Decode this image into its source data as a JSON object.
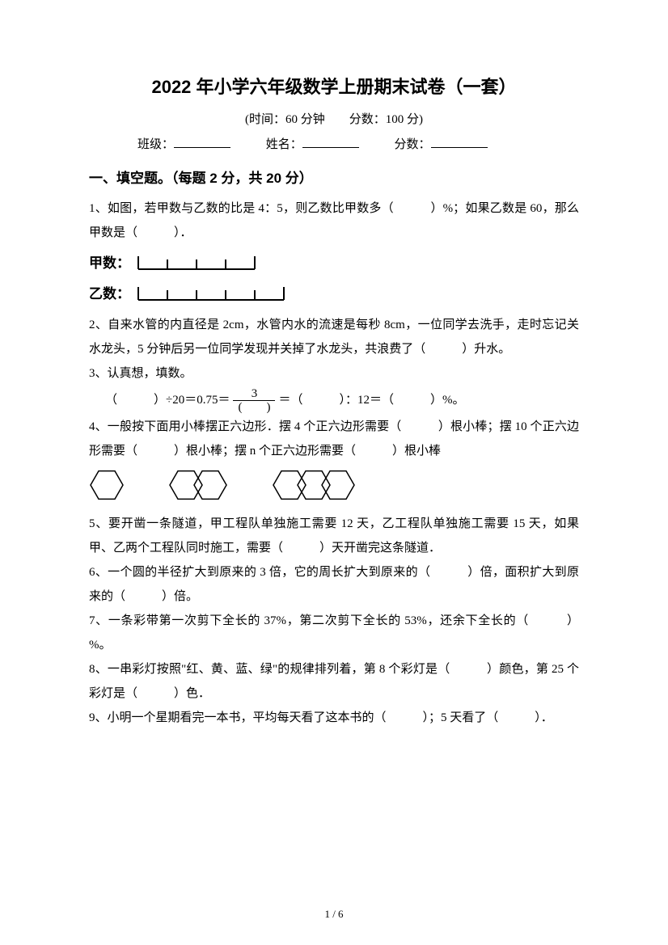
{
  "title": "2022 年小学六年级数学上册期末试卷（一套）",
  "subtitle": "(时间：60 分钟　　分数：100 分)",
  "form": {
    "class_label": "班级：",
    "name_label": "姓名：",
    "score_label": "分数："
  },
  "section1": {
    "heading": "一、填空题。（每题 2 分，共 20 分）",
    "q1_a": "1、如图，若甲数与乙数的比是 4：5，则乙数比甲数多（　　　）%；如果乙数是 60，那么甲数是（　　　）．",
    "q1_jia": "甲数：",
    "q1_yi": "乙数：",
    "q2": "2、自来水管的内直径是 2cm，水管内水的流速是每秒 8cm，一位同学去洗手，走时忘记关水龙头，5 分钟后另一位同学发现并关掉了水龙头，共浪费了（　　　）升水。",
    "q3_a": "3、认真想，填数。",
    "q3_b_pre": "（　　　）÷20＝0.75＝",
    "q3_b_num": "3",
    "q3_b_den": "(　　)",
    "q3_b_post": "＝（　　　）：12＝（　　　）%。",
    "q4": "4、一般按下面用小棒摆正六边形．摆 4 个正六边形需要（　　　）根小棒；摆 10 个正六边形需要（　　　）根小棒；摆 n 个正六边形需要（　　　）根小棒",
    "q5": "5、要开凿一条隧道，甲工程队单独施工需要 12 天，乙工程队单独施工需要 15 天，如果甲、乙两个工程队同时施工，需要（　　　）天开凿完这条隧道．",
    "q6": "6、一个圆的半径扩大到原来的 3 倍，它的周长扩大到原来的（　　　）倍，面积扩大到原来的（　　　）倍。",
    "q7": "7、一条彩带第一次剪下全长的 37%，第二次剪下全长的 53%，还余下全长的（　　　）%。",
    "q8": "8、一串彩灯按照\"红、黄、蓝、绿\"的规律排列着，第 8 个彩灯是（　　　）颜色，第 25 个彩灯是（　　　）色．",
    "q9": "9、小明一个星期看完一本书，平均每天看了这本书的（　　　）；5 天看了（　　　）．"
  },
  "rulers": {
    "jia_segments": 4,
    "yi_segments": 5,
    "seg_w": 36,
    "seg_h": 16,
    "stroke": "#000000",
    "tick_h": 12
  },
  "hexagons": {
    "groups": [
      1,
      2,
      3
    ],
    "size": 20,
    "stroke": "#000000",
    "group_gap": 58
  },
  "page_num": "1 / 6",
  "colors": {
    "bg": "#ffffff",
    "text": "#000000"
  }
}
